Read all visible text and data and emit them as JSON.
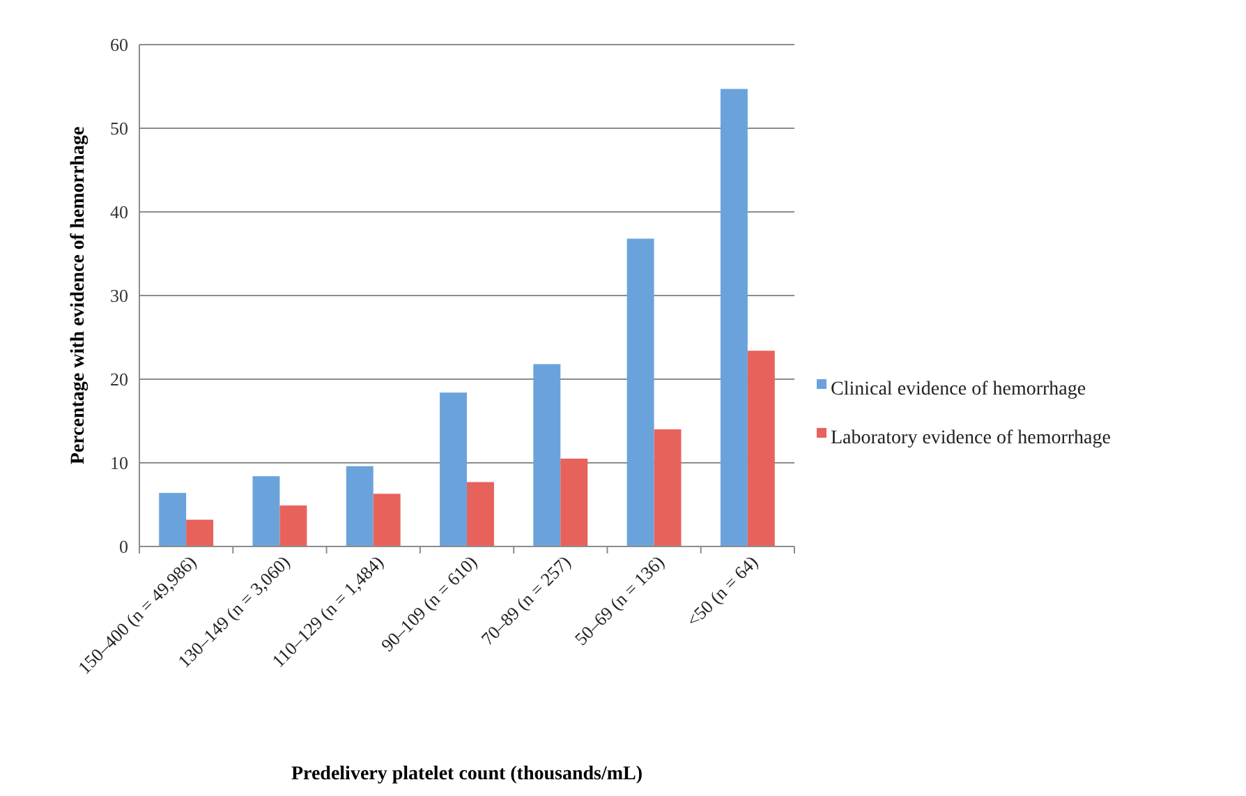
{
  "chart_data": {
    "type": "bar",
    "xlabel": "Predelivery platelet count (thousands/mL)",
    "ylabel": "Percentage with evidence of hemorrhage",
    "categories": [
      "150–400 (n = 49,986)",
      "130–149 (n = 3,060)",
      "110–129 (n = 1,484)",
      "90–109 (n = 610)",
      "70–89 (n = 257)",
      "50–69 (n = 136)",
      "<50 (n = 64)"
    ],
    "series": [
      {
        "name": "Clinical evidence of hemorrhage",
        "color": "#6aa3dc",
        "values": [
          6.4,
          8.4,
          9.6,
          18.4,
          21.8,
          36.8,
          54.7
        ]
      },
      {
        "name": "Laboratory evidence of hemorrhage",
        "color": "#e8625c",
        "values": [
          3.2,
          4.9,
          6.3,
          7.7,
          10.5,
          14.0,
          23.4
        ]
      }
    ],
    "ylim": [
      0,
      60
    ],
    "yticks": [
      0,
      10,
      20,
      30,
      40,
      50,
      60
    ],
    "grid": "y",
    "legend": "right"
  }
}
